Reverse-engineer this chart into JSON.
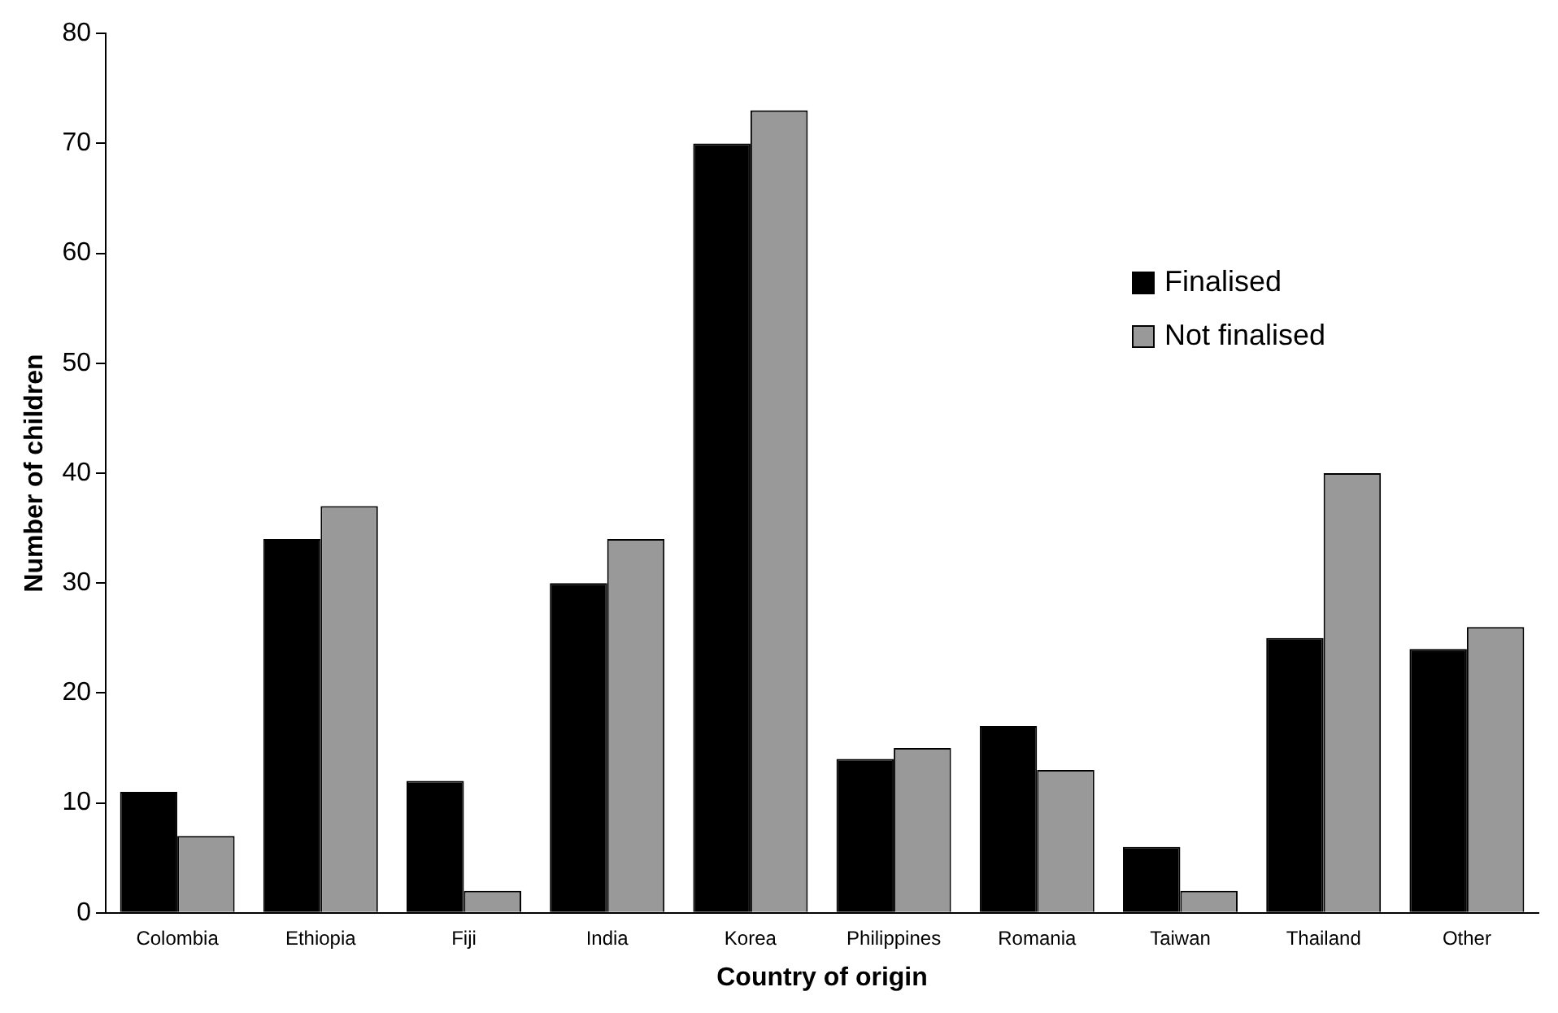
{
  "chart_data": {
    "type": "bar",
    "xlabel": "Country of origin",
    "ylabel": "Number of children",
    "categories": [
      "Colombia",
      "Ethiopia",
      "Fiji",
      "India",
      "Korea",
      "Philippines",
      "Romania",
      "Taiwan",
      "Thailand",
      "Other"
    ],
    "series": [
      {
        "name": "Finalised",
        "color": "#000000",
        "values": [
          11,
          34,
          12,
          30,
          70,
          14,
          17,
          6,
          25,
          24
        ]
      },
      {
        "name": "Not finalised",
        "color": "#999999",
        "values": [
          7,
          37,
          2,
          34,
          73,
          15,
          13,
          2,
          40,
          26
        ]
      }
    ],
    "ylim": [
      0,
      80
    ],
    "yticks": [
      0,
      10,
      20,
      30,
      40,
      50,
      60,
      70,
      80
    ],
    "grid": false,
    "legend": "right"
  }
}
